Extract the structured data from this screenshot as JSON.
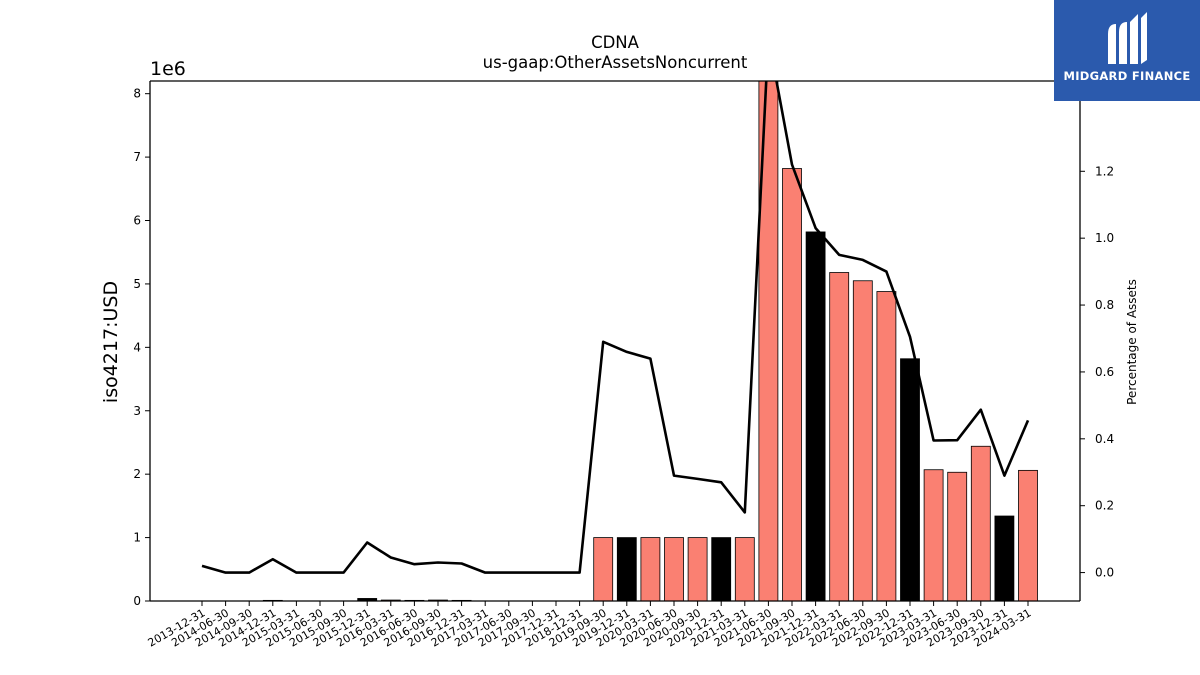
{
  "chart_data": {
    "type": "bar+line",
    "title": "CDNA",
    "subtitle": "us-gaap:OtherAssetsNoncurrent",
    "ylabel": "iso4217:USD",
    "y_scale_label": "1e6",
    "y2label": "Percentage of Assets",
    "ylim": [
      0,
      8.2
    ],
    "y_ticks": [
      0,
      1,
      2,
      3,
      4,
      5,
      6,
      7,
      8
    ],
    "y2lim": [
      -0.085,
      1.47
    ],
    "y2_ticks": [
      0.0,
      0.2,
      0.4,
      0.6,
      0.8,
      1.0,
      1.2
    ],
    "grid": false,
    "categories": [
      "2013-12-31",
      "2014-06-30",
      "2014-09-30",
      "2014-12-31",
      "2015-03-31",
      "2015-06-30",
      "2015-09-30",
      "2015-12-31",
      "2016-03-31",
      "2016-06-30",
      "2016-09-30",
      "2016-12-31",
      "2017-03-31",
      "2017-06-30",
      "2017-09-30",
      "2017-12-31",
      "2018-12-31",
      "2019-09-30",
      "2019-12-31",
      "2020-03-31",
      "2020-06-30",
      "2020-09-30",
      "2020-12-31",
      "2021-03-31",
      "2021-06-30",
      "2021-09-30",
      "2021-12-31",
      "2022-03-31",
      "2022-06-30",
      "2022-09-30",
      "2022-12-31",
      "2023-03-31",
      "2023-06-30",
      "2023-09-30",
      "2023-12-31",
      "2024-03-31"
    ],
    "series": [
      {
        "chart": "bar",
        "axis": "left",
        "values": [
          0,
          0,
          0,
          0.01,
          0,
          0,
          0,
          0.04,
          0.015,
          0.01,
          0.015,
          0.01,
          0,
          0,
          0,
          0,
          0,
          1.0,
          1.0,
          1.0,
          1.0,
          1.0,
          1.0,
          1.0,
          8.4,
          6.82,
          5.82,
          5.18,
          5.05,
          4.88,
          3.82,
          2.07,
          2.03,
          2.44,
          1.34,
          2.06
        ],
        "colors": [
          "#fa8072",
          "#fa8072",
          "#fa8072",
          "#000000",
          "#fa8072",
          "#fa8072",
          "#fa8072",
          "#000000",
          "#fa8072",
          "#fa8072",
          "#fa8072",
          "#000000",
          "#fa8072",
          "#fa8072",
          "#fa8072",
          "#000000",
          "#000000",
          "#fa8072",
          "#000000",
          "#fa8072",
          "#fa8072",
          "#fa8072",
          "#000000",
          "#fa8072",
          "#fa8072",
          "#fa8072",
          "#000000",
          "#fa8072",
          "#fa8072",
          "#fa8072",
          "#000000",
          "#fa8072",
          "#fa8072",
          "#fa8072",
          "#000000",
          "#fa8072"
        ]
      },
      {
        "chart": "line",
        "axis": "right",
        "color": "#000000",
        "values": [
          0.02,
          0.0,
          0.0,
          0.04,
          0.0,
          0.0,
          0.0,
          0.09,
          0.045,
          0.025,
          0.03,
          0.027,
          0.0,
          0.0,
          0.0,
          0.0,
          0.0,
          0.69,
          0.66,
          0.64,
          0.29,
          0.28,
          0.27,
          0.18,
          1.6,
          1.22,
          1.03,
          0.95,
          0.935,
          0.9,
          0.705,
          0.395,
          0.396,
          0.487,
          0.29,
          0.455
        ]
      }
    ]
  },
  "logo": {
    "text": "MIDGARD FINANCE",
    "bg": "#2b5aad"
  }
}
